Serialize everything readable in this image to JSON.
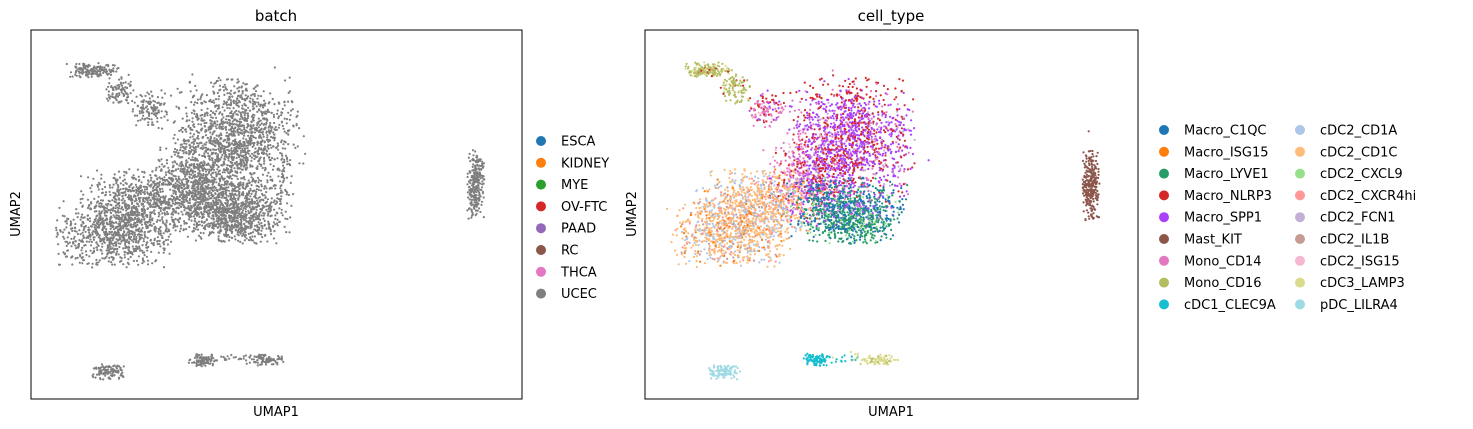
{
  "chart_data": [
    {
      "type": "scatter",
      "title": "batch",
      "xlabel": "UMAP1",
      "ylabel": "UMAP2",
      "ticks": "none",
      "grid": false,
      "legend_position": "right",
      "legend": [
        {
          "label": "ESCA",
          "color": "#1f77b4"
        },
        {
          "label": "KIDNEY",
          "color": "#ff7f0e"
        },
        {
          "label": "MYE",
          "color": "#2ca02c"
        },
        {
          "label": "OV-FTC",
          "color": "#d62728"
        },
        {
          "label": "PAAD",
          "color": "#9467bd"
        },
        {
          "label": "RC",
          "color": "#8c564b"
        },
        {
          "label": "THCA",
          "color": "#e377c2"
        },
        {
          "label": "UCEC",
          "color": "#7f7f7f"
        }
      ],
      "point_color": "#7f7f7f"
    },
    {
      "type": "scatter",
      "title": "cell_type",
      "xlabel": "UMAP1",
      "ylabel": "UMAP2",
      "ticks": "none",
      "grid": false,
      "legend_position": "right",
      "legend": [
        {
          "label": "Macro_C1QC",
          "color": "#1f77b4"
        },
        {
          "label": "Macro_ISG15",
          "color": "#ff7f0e"
        },
        {
          "label": "Macro_LYVE1",
          "color": "#279e68"
        },
        {
          "label": "Macro_NLRP3",
          "color": "#d62728"
        },
        {
          "label": "Macro_SPP1",
          "color": "#aa40fc"
        },
        {
          "label": "Mast_KIT",
          "color": "#8c564b"
        },
        {
          "label": "Mono_CD14",
          "color": "#e377c2"
        },
        {
          "label": "Mono_CD16",
          "color": "#b5bd61"
        },
        {
          "label": "cDC1_CLEC9A",
          "color": "#17becf"
        },
        {
          "label": "cDC2_CD1A",
          "color": "#aec7e8"
        },
        {
          "label": "cDC2_CD1C",
          "color": "#ffbb78"
        },
        {
          "label": "cDC2_CXCL9",
          "color": "#98df8a"
        },
        {
          "label": "cDC2_CXCR4hi",
          "color": "#ff9896"
        },
        {
          "label": "cDC2_FCN1",
          "color": "#c5b0d5"
        },
        {
          "label": "cDC2_IL1B",
          "color": "#c49c94"
        },
        {
          "label": "cDC2_ISG15",
          "color": "#f7b6d2"
        },
        {
          "label": "cDC3_LAMP3",
          "color": "#dbdb8d"
        },
        {
          "label": "pDC_LILRA4",
          "color": "#9edae5"
        }
      ]
    }
  ]
}
